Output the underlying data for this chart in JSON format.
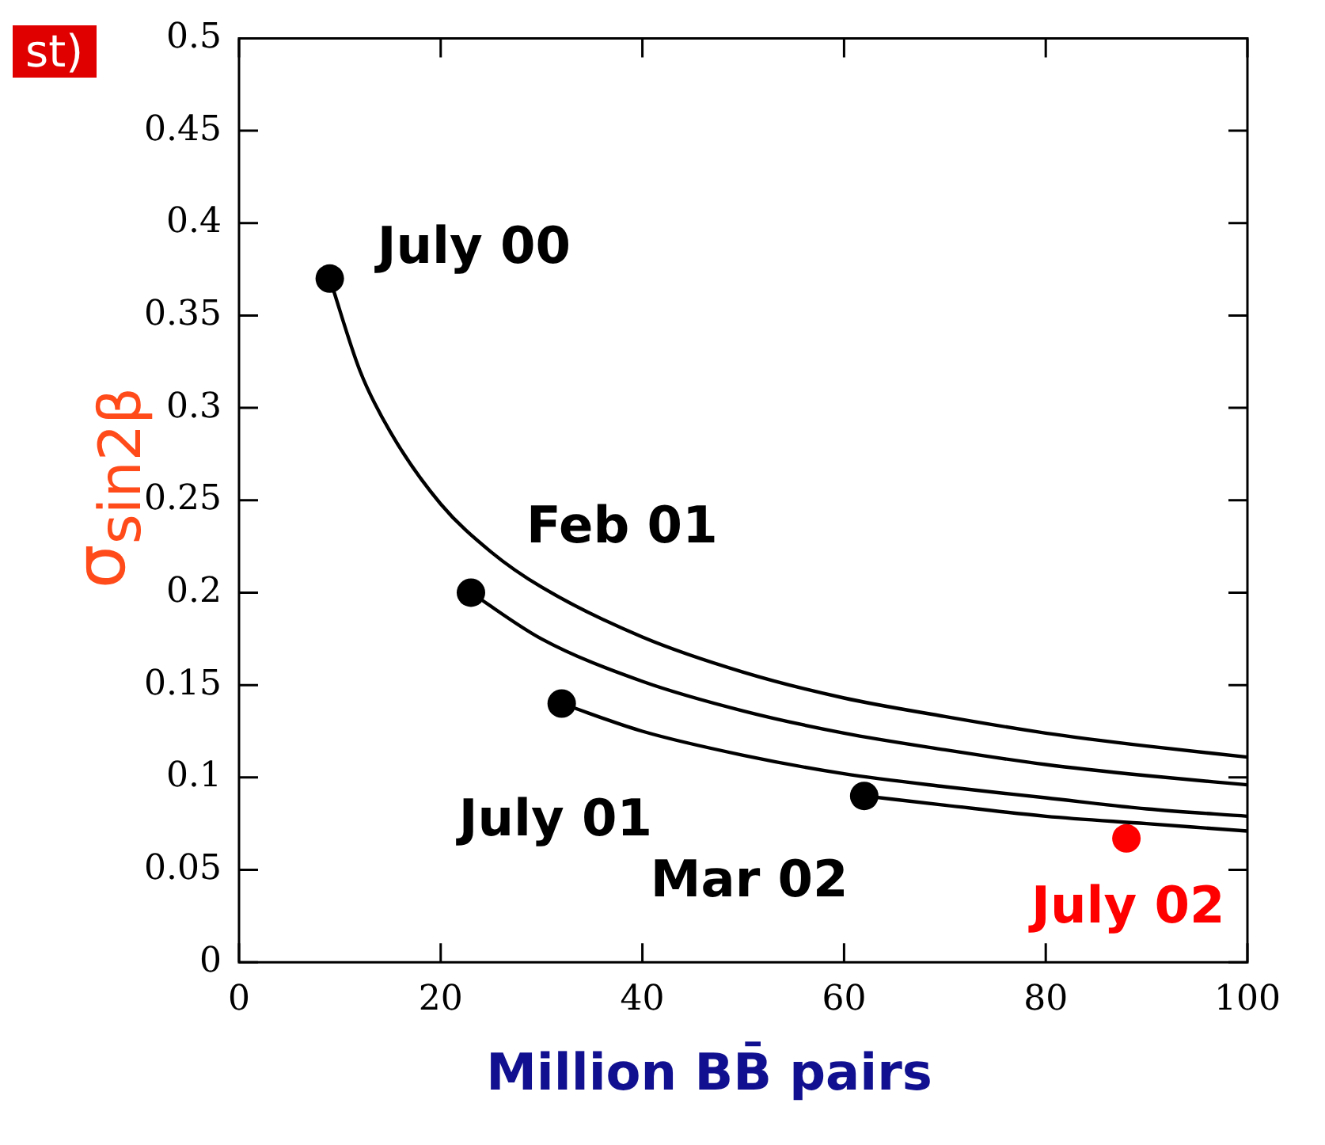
{
  "chart_data": {
    "type": "scatter",
    "xlabel": "Million BB̄ pairs",
    "ylabel": "σ$_{sin2β}$",
    "annotations": [
      "st)"
    ],
    "xlim": [
      0,
      100
    ],
    "xticks": [
      0,
      20,
      40,
      60,
      80,
      100
    ],
    "ylim": [
      0,
      0.5
    ],
    "yticks": [
      0,
      0.05,
      0.1,
      0.15,
      0.2,
      0.25,
      0.3,
      0.35,
      0.4,
      0.45,
      0.5
    ],
    "grid": false,
    "legend": false,
    "series": [
      {
        "type": "line",
        "color": "#000000",
        "marker": "none",
        "x": [
          9,
          12,
          15,
          20,
          25,
          30,
          40,
          50,
          60,
          70,
          80,
          90,
          100
        ],
        "values": [
          0.37,
          0.32,
          0.287,
          0.248,
          0.222,
          0.203,
          0.176,
          0.157,
          0.143,
          0.133,
          0.124,
          0.117,
          0.111
        ]
      },
      {
        "type": "line",
        "color": "#000000",
        "marker": "none",
        "x": [
          23,
          30,
          40,
          50,
          60,
          70,
          80,
          90,
          100
        ],
        "values": [
          0.2,
          0.175,
          0.152,
          0.136,
          0.124,
          0.115,
          0.107,
          0.101,
          0.096
        ]
      },
      {
        "type": "line",
        "color": "#000000",
        "marker": "none",
        "x": [
          32,
          40,
          50,
          60,
          70,
          80,
          90,
          100
        ],
        "values": [
          0.14,
          0.125,
          0.112,
          0.102,
          0.095,
          0.089,
          0.083,
          0.079
        ]
      },
      {
        "type": "line",
        "color": "#000000",
        "marker": "none",
        "x": [
          62,
          70,
          80,
          90,
          100
        ],
        "values": [
          0.09,
          0.085,
          0.079,
          0.075,
          0.071
        ]
      },
      {
        "type": "scatter",
        "marker": "circle",
        "x": [
          9,
          23,
          32,
          62,
          88
        ],
        "values": [
          0.37,
          0.2,
          0.14,
          0.09,
          0.067
        ],
        "colors": [
          "#000000",
          "#000000",
          "#000000",
          "#000000",
          "#ff0000"
        ],
        "value_labels": [
          "July 00",
          "Feb 01",
          "July 01",
          "Mar 02",
          "July 02"
        ]
      }
    ]
  }
}
